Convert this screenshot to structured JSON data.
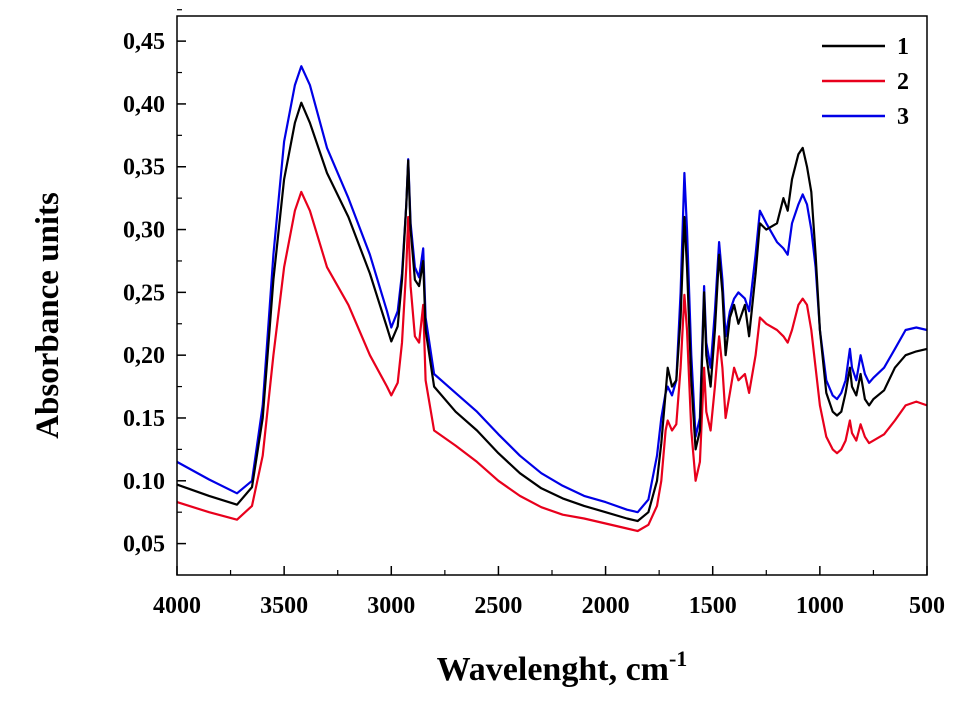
{
  "chart_data": {
    "type": "line",
    "xlabel": "Wavelenght, cm",
    "xlabel_superscript": "-1",
    "ylabel": "Absorbance units",
    "xlim": [
      4000,
      500
    ],
    "ylim": [
      0.025,
      0.47
    ],
    "x_reversed": true,
    "x_ticks": [
      4000,
      3500,
      3000,
      2500,
      2000,
      1500,
      1000,
      500
    ],
    "x_tick_labels": [
      "4000",
      "3500",
      "3000",
      "2500",
      "2000",
      "1500",
      "1000",
      "500"
    ],
    "y_ticks": [
      0.05,
      0.1,
      0.15,
      0.2,
      0.25,
      0.3,
      0.35,
      0.4,
      0.45
    ],
    "y_tick_labels": [
      "0,05",
      "0.10",
      "0.15",
      "0,20",
      "0,25",
      "0,30",
      "0,35",
      "0,40",
      "0,45"
    ],
    "grid": false,
    "legend_position": "top-right",
    "series": [
      {
        "name": "1",
        "color": "#000000",
        "points": [
          [
            4000,
            0.097
          ],
          [
            3850,
            0.088
          ],
          [
            3720,
            0.081
          ],
          [
            3650,
            0.095
          ],
          [
            3600,
            0.15
          ],
          [
            3550,
            0.26
          ],
          [
            3500,
            0.34
          ],
          [
            3450,
            0.385
          ],
          [
            3420,
            0.401
          ],
          [
            3380,
            0.385
          ],
          [
            3300,
            0.345
          ],
          [
            3200,
            0.31
          ],
          [
            3100,
            0.265
          ],
          [
            3020,
            0.222
          ],
          [
            3000,
            0.211
          ],
          [
            2970,
            0.223
          ],
          [
            2950,
            0.26
          ],
          [
            2930,
            0.32
          ],
          [
            2921,
            0.355
          ],
          [
            2910,
            0.3
          ],
          [
            2890,
            0.26
          ],
          [
            2870,
            0.255
          ],
          [
            2851,
            0.275
          ],
          [
            2840,
            0.22
          ],
          [
            2800,
            0.175
          ],
          [
            2700,
            0.155
          ],
          [
            2600,
            0.14
          ],
          [
            2500,
            0.122
          ],
          [
            2400,
            0.106
          ],
          [
            2300,
            0.094
          ],
          [
            2200,
            0.086
          ],
          [
            2100,
            0.08
          ],
          [
            2000,
            0.075
          ],
          [
            1900,
            0.07
          ],
          [
            1850,
            0.068
          ],
          [
            1800,
            0.075
          ],
          [
            1760,
            0.1
          ],
          [
            1740,
            0.13
          ],
          [
            1720,
            0.17
          ],
          [
            1710,
            0.19
          ],
          [
            1690,
            0.175
          ],
          [
            1670,
            0.18
          ],
          [
            1650,
            0.23
          ],
          [
            1632,
            0.31
          ],
          [
            1620,
            0.27
          ],
          [
            1600,
            0.18
          ],
          [
            1580,
            0.125
          ],
          [
            1560,
            0.14
          ],
          [
            1540,
            0.25
          ],
          [
            1530,
            0.2
          ],
          [
            1510,
            0.175
          ],
          [
            1490,
            0.22
          ],
          [
            1470,
            0.28
          ],
          [
            1455,
            0.25
          ],
          [
            1440,
            0.2
          ],
          [
            1420,
            0.23
          ],
          [
            1400,
            0.24
          ],
          [
            1380,
            0.225
          ],
          [
            1350,
            0.24
          ],
          [
            1330,
            0.215
          ],
          [
            1300,
            0.265
          ],
          [
            1280,
            0.305
          ],
          [
            1250,
            0.3
          ],
          [
            1200,
            0.305
          ],
          [
            1170,
            0.325
          ],
          [
            1150,
            0.315
          ],
          [
            1130,
            0.34
          ],
          [
            1100,
            0.36
          ],
          [
            1080,
            0.365
          ],
          [
            1060,
            0.35
          ],
          [
            1040,
            0.33
          ],
          [
            1020,
            0.28
          ],
          [
            1000,
            0.22
          ],
          [
            970,
            0.17
          ],
          [
            940,
            0.155
          ],
          [
            920,
            0.152
          ],
          [
            900,
            0.155
          ],
          [
            880,
            0.17
          ],
          [
            860,
            0.19
          ],
          [
            850,
            0.175
          ],
          [
            830,
            0.168
          ],
          [
            810,
            0.185
          ],
          [
            790,
            0.165
          ],
          [
            770,
            0.16
          ],
          [
            750,
            0.165
          ],
          [
            700,
            0.172
          ],
          [
            650,
            0.19
          ],
          [
            600,
            0.2
          ],
          [
            550,
            0.203
          ],
          [
            500,
            0.205
          ]
        ]
      },
      {
        "name": "2",
        "color": "#e8001c",
        "points": [
          [
            4000,
            0.083
          ],
          [
            3850,
            0.075
          ],
          [
            3720,
            0.069
          ],
          [
            3650,
            0.08
          ],
          [
            3600,
            0.12
          ],
          [
            3550,
            0.2
          ],
          [
            3500,
            0.27
          ],
          [
            3450,
            0.315
          ],
          [
            3420,
            0.33
          ],
          [
            3380,
            0.315
          ],
          [
            3300,
            0.27
          ],
          [
            3200,
            0.24
          ],
          [
            3100,
            0.2
          ],
          [
            3020,
            0.175
          ],
          [
            3000,
            0.168
          ],
          [
            2970,
            0.178
          ],
          [
            2950,
            0.21
          ],
          [
            2930,
            0.27
          ],
          [
            2921,
            0.31
          ],
          [
            2910,
            0.255
          ],
          [
            2890,
            0.215
          ],
          [
            2870,
            0.21
          ],
          [
            2851,
            0.24
          ],
          [
            2840,
            0.18
          ],
          [
            2800,
            0.14
          ],
          [
            2700,
            0.128
          ],
          [
            2600,
            0.115
          ],
          [
            2500,
            0.1
          ],
          [
            2400,
            0.088
          ],
          [
            2300,
            0.079
          ],
          [
            2200,
            0.073
          ],
          [
            2100,
            0.07
          ],
          [
            2000,
            0.066
          ],
          [
            1900,
            0.062
          ],
          [
            1850,
            0.06
          ],
          [
            1800,
            0.065
          ],
          [
            1760,
            0.08
          ],
          [
            1740,
            0.1
          ],
          [
            1720,
            0.14
          ],
          [
            1710,
            0.148
          ],
          [
            1690,
            0.14
          ],
          [
            1670,
            0.145
          ],
          [
            1650,
            0.19
          ],
          [
            1632,
            0.248
          ],
          [
            1620,
            0.22
          ],
          [
            1600,
            0.14
          ],
          [
            1580,
            0.1
          ],
          [
            1560,
            0.115
          ],
          [
            1540,
            0.19
          ],
          [
            1530,
            0.155
          ],
          [
            1510,
            0.14
          ],
          [
            1490,
            0.175
          ],
          [
            1470,
            0.215
          ],
          [
            1455,
            0.19
          ],
          [
            1440,
            0.15
          ],
          [
            1420,
            0.17
          ],
          [
            1400,
            0.19
          ],
          [
            1380,
            0.18
          ],
          [
            1350,
            0.185
          ],
          [
            1330,
            0.17
          ],
          [
            1300,
            0.2
          ],
          [
            1280,
            0.23
          ],
          [
            1250,
            0.225
          ],
          [
            1200,
            0.22
          ],
          [
            1170,
            0.215
          ],
          [
            1150,
            0.21
          ],
          [
            1130,
            0.22
          ],
          [
            1100,
            0.24
          ],
          [
            1080,
            0.245
          ],
          [
            1060,
            0.24
          ],
          [
            1040,
            0.22
          ],
          [
            1020,
            0.19
          ],
          [
            1000,
            0.16
          ],
          [
            970,
            0.135
          ],
          [
            940,
            0.125
          ],
          [
            920,
            0.122
          ],
          [
            900,
            0.125
          ],
          [
            880,
            0.132
          ],
          [
            860,
            0.148
          ],
          [
            850,
            0.138
          ],
          [
            830,
            0.132
          ],
          [
            810,
            0.145
          ],
          [
            790,
            0.135
          ],
          [
            770,
            0.13
          ],
          [
            750,
            0.132
          ],
          [
            700,
            0.137
          ],
          [
            650,
            0.148
          ],
          [
            600,
            0.16
          ],
          [
            550,
            0.163
          ],
          [
            500,
            0.16
          ]
        ]
      },
      {
        "name": "3",
        "color": "#0000e6",
        "points": [
          [
            4000,
            0.115
          ],
          [
            3850,
            0.101
          ],
          [
            3720,
            0.09
          ],
          [
            3650,
            0.1
          ],
          [
            3600,
            0.16
          ],
          [
            3550,
            0.28
          ],
          [
            3500,
            0.37
          ],
          [
            3450,
            0.415
          ],
          [
            3420,
            0.43
          ],
          [
            3380,
            0.415
          ],
          [
            3300,
            0.365
          ],
          [
            3200,
            0.325
          ],
          [
            3100,
            0.28
          ],
          [
            3020,
            0.235
          ],
          [
            3000,
            0.222
          ],
          [
            2970,
            0.235
          ],
          [
            2950,
            0.265
          ],
          [
            2930,
            0.32
          ],
          [
            2921,
            0.356
          ],
          [
            2910,
            0.305
          ],
          [
            2890,
            0.27
          ],
          [
            2870,
            0.262
          ],
          [
            2851,
            0.285
          ],
          [
            2840,
            0.23
          ],
          [
            2800,
            0.185
          ],
          [
            2700,
            0.17
          ],
          [
            2600,
            0.155
          ],
          [
            2500,
            0.137
          ],
          [
            2400,
            0.12
          ],
          [
            2300,
            0.106
          ],
          [
            2200,
            0.096
          ],
          [
            2100,
            0.088
          ],
          [
            2000,
            0.083
          ],
          [
            1900,
            0.077
          ],
          [
            1850,
            0.075
          ],
          [
            1800,
            0.085
          ],
          [
            1760,
            0.12
          ],
          [
            1740,
            0.15
          ],
          [
            1720,
            0.17
          ],
          [
            1710,
            0.175
          ],
          [
            1690,
            0.168
          ],
          [
            1670,
            0.18
          ],
          [
            1650,
            0.25
          ],
          [
            1632,
            0.345
          ],
          [
            1620,
            0.3
          ],
          [
            1600,
            0.2
          ],
          [
            1580,
            0.135
          ],
          [
            1560,
            0.15
          ],
          [
            1540,
            0.255
          ],
          [
            1530,
            0.21
          ],
          [
            1510,
            0.19
          ],
          [
            1490,
            0.235
          ],
          [
            1470,
            0.29
          ],
          [
            1455,
            0.26
          ],
          [
            1440,
            0.215
          ],
          [
            1420,
            0.235
          ],
          [
            1400,
            0.245
          ],
          [
            1380,
            0.25
          ],
          [
            1350,
            0.245
          ],
          [
            1330,
            0.235
          ],
          [
            1300,
            0.28
          ],
          [
            1280,
            0.315
          ],
          [
            1250,
            0.305
          ],
          [
            1200,
            0.29
          ],
          [
            1170,
            0.285
          ],
          [
            1150,
            0.28
          ],
          [
            1130,
            0.305
          ],
          [
            1100,
            0.32
          ],
          [
            1080,
            0.328
          ],
          [
            1060,
            0.32
          ],
          [
            1040,
            0.3
          ],
          [
            1020,
            0.27
          ],
          [
            1000,
            0.22
          ],
          [
            970,
            0.18
          ],
          [
            940,
            0.168
          ],
          [
            920,
            0.165
          ],
          [
            900,
            0.17
          ],
          [
            880,
            0.18
          ],
          [
            860,
            0.205
          ],
          [
            850,
            0.19
          ],
          [
            830,
            0.18
          ],
          [
            810,
            0.2
          ],
          [
            790,
            0.185
          ],
          [
            770,
            0.178
          ],
          [
            750,
            0.182
          ],
          [
            700,
            0.19
          ],
          [
            650,
            0.205
          ],
          [
            600,
            0.22
          ],
          [
            550,
            0.222
          ],
          [
            500,
            0.22
          ]
        ]
      }
    ]
  }
}
